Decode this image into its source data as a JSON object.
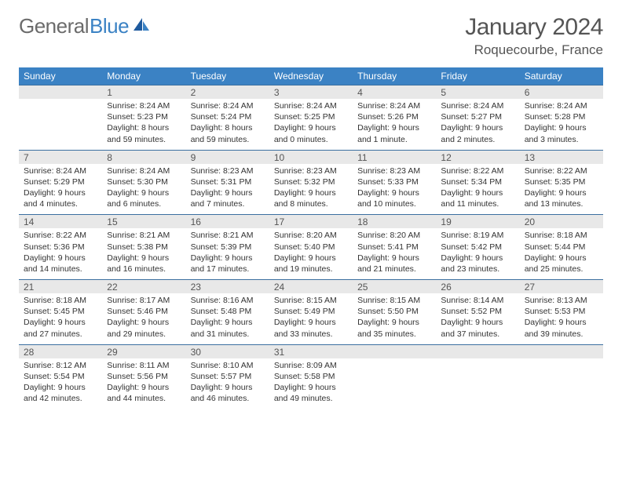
{
  "logo": {
    "text1": "General",
    "text2": "Blue"
  },
  "header": {
    "title": "January 2024",
    "location": "Roquecourbe, France"
  },
  "colors": {
    "header_bg": "#3b82c4",
    "daynum_bg": "#e8e8e8",
    "daynum_border": "#3b6fa0",
    "text": "#333333"
  },
  "daynames": [
    "Sunday",
    "Monday",
    "Tuesday",
    "Wednesday",
    "Thursday",
    "Friday",
    "Saturday"
  ],
  "weeks": [
    {
      "nums": [
        "",
        "1",
        "2",
        "3",
        "4",
        "5",
        "6"
      ],
      "cells": [
        {},
        {
          "sunrise": "8:24 AM",
          "sunset": "5:23 PM",
          "daylight": "8 hours and 59 minutes."
        },
        {
          "sunrise": "8:24 AM",
          "sunset": "5:24 PM",
          "daylight": "8 hours and 59 minutes."
        },
        {
          "sunrise": "8:24 AM",
          "sunset": "5:25 PM",
          "daylight": "9 hours and 0 minutes."
        },
        {
          "sunrise": "8:24 AM",
          "sunset": "5:26 PM",
          "daylight": "9 hours and 1 minute."
        },
        {
          "sunrise": "8:24 AM",
          "sunset": "5:27 PM",
          "daylight": "9 hours and 2 minutes."
        },
        {
          "sunrise": "8:24 AM",
          "sunset": "5:28 PM",
          "daylight": "9 hours and 3 minutes."
        }
      ]
    },
    {
      "nums": [
        "7",
        "8",
        "9",
        "10",
        "11",
        "12",
        "13"
      ],
      "cells": [
        {
          "sunrise": "8:24 AM",
          "sunset": "5:29 PM",
          "daylight": "9 hours and 4 minutes."
        },
        {
          "sunrise": "8:24 AM",
          "sunset": "5:30 PM",
          "daylight": "9 hours and 6 minutes."
        },
        {
          "sunrise": "8:23 AM",
          "sunset": "5:31 PM",
          "daylight": "9 hours and 7 minutes."
        },
        {
          "sunrise": "8:23 AM",
          "sunset": "5:32 PM",
          "daylight": "9 hours and 8 minutes."
        },
        {
          "sunrise": "8:23 AM",
          "sunset": "5:33 PM",
          "daylight": "9 hours and 10 minutes."
        },
        {
          "sunrise": "8:22 AM",
          "sunset": "5:34 PM",
          "daylight": "9 hours and 11 minutes."
        },
        {
          "sunrise": "8:22 AM",
          "sunset": "5:35 PM",
          "daylight": "9 hours and 13 minutes."
        }
      ]
    },
    {
      "nums": [
        "14",
        "15",
        "16",
        "17",
        "18",
        "19",
        "20"
      ],
      "cells": [
        {
          "sunrise": "8:22 AM",
          "sunset": "5:36 PM",
          "daylight": "9 hours and 14 minutes."
        },
        {
          "sunrise": "8:21 AM",
          "sunset": "5:38 PM",
          "daylight": "9 hours and 16 minutes."
        },
        {
          "sunrise": "8:21 AM",
          "sunset": "5:39 PM",
          "daylight": "9 hours and 17 minutes."
        },
        {
          "sunrise": "8:20 AM",
          "sunset": "5:40 PM",
          "daylight": "9 hours and 19 minutes."
        },
        {
          "sunrise": "8:20 AM",
          "sunset": "5:41 PM",
          "daylight": "9 hours and 21 minutes."
        },
        {
          "sunrise": "8:19 AM",
          "sunset": "5:42 PM",
          "daylight": "9 hours and 23 minutes."
        },
        {
          "sunrise": "8:18 AM",
          "sunset": "5:44 PM",
          "daylight": "9 hours and 25 minutes."
        }
      ]
    },
    {
      "nums": [
        "21",
        "22",
        "23",
        "24",
        "25",
        "26",
        "27"
      ],
      "cells": [
        {
          "sunrise": "8:18 AM",
          "sunset": "5:45 PM",
          "daylight": "9 hours and 27 minutes."
        },
        {
          "sunrise": "8:17 AM",
          "sunset": "5:46 PM",
          "daylight": "9 hours and 29 minutes."
        },
        {
          "sunrise": "8:16 AM",
          "sunset": "5:48 PM",
          "daylight": "9 hours and 31 minutes."
        },
        {
          "sunrise": "8:15 AM",
          "sunset": "5:49 PM",
          "daylight": "9 hours and 33 minutes."
        },
        {
          "sunrise": "8:15 AM",
          "sunset": "5:50 PM",
          "daylight": "9 hours and 35 minutes."
        },
        {
          "sunrise": "8:14 AM",
          "sunset": "5:52 PM",
          "daylight": "9 hours and 37 minutes."
        },
        {
          "sunrise": "8:13 AM",
          "sunset": "5:53 PM",
          "daylight": "9 hours and 39 minutes."
        }
      ]
    },
    {
      "nums": [
        "28",
        "29",
        "30",
        "31",
        "",
        "",
        ""
      ],
      "cells": [
        {
          "sunrise": "8:12 AM",
          "sunset": "5:54 PM",
          "daylight": "9 hours and 42 minutes."
        },
        {
          "sunrise": "8:11 AM",
          "sunset": "5:56 PM",
          "daylight": "9 hours and 44 minutes."
        },
        {
          "sunrise": "8:10 AM",
          "sunset": "5:57 PM",
          "daylight": "9 hours and 46 minutes."
        },
        {
          "sunrise": "8:09 AM",
          "sunset": "5:58 PM",
          "daylight": "9 hours and 49 minutes."
        },
        {},
        {},
        {}
      ]
    }
  ]
}
